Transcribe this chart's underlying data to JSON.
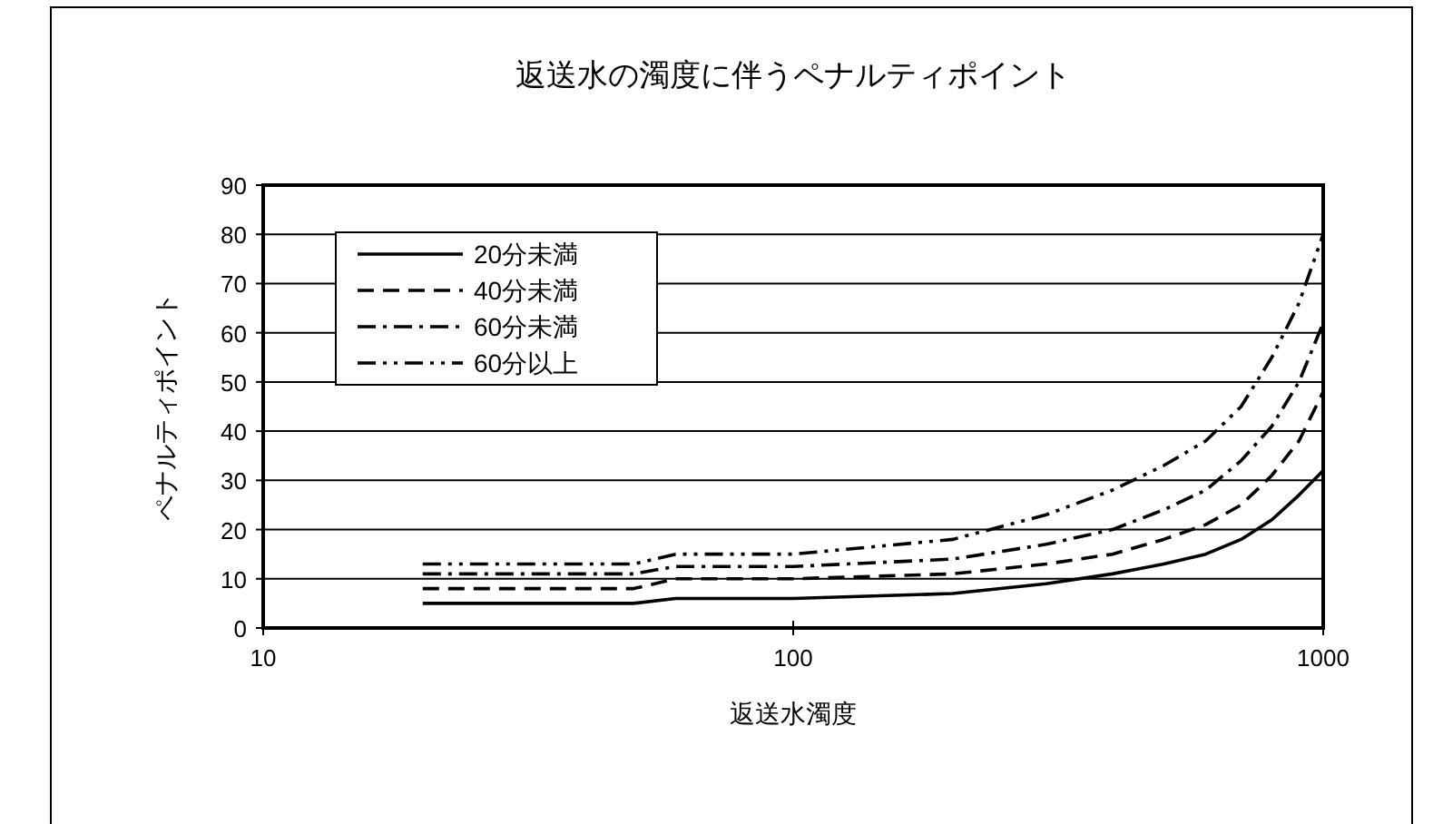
{
  "chart_data": {
    "type": "line",
    "title": "返送水の濁度に伴うペナルティポイント",
    "xlabel": "返送水濁度",
    "ylabel": "ペナルティポイント",
    "log": "x",
    "xlim": [
      10,
      1000
    ],
    "xticks": [
      10,
      100,
      1000
    ],
    "ylim": [
      0,
      90
    ],
    "yticks": [
      0,
      10,
      20,
      30,
      40,
      50,
      60,
      70,
      80,
      90
    ],
    "grid": "y",
    "legend": "top left",
    "marker": "none",
    "x": [
      20,
      50,
      60,
      100,
      200,
      300,
      400,
      500,
      600,
      700,
      800,
      900,
      1000
    ],
    "series": [
      {
        "name": "20分未満",
        "color": "#000000",
        "line_style": "solid",
        "values": [
          5,
          5,
          6,
          6,
          7,
          9,
          11,
          13,
          15,
          18,
          22,
          27,
          32
        ]
      },
      {
        "name": "40分未満",
        "color": "#000000",
        "line_style": "dashed",
        "values": [
          8,
          8,
          10,
          10,
          11,
          13,
          15,
          18,
          21,
          25,
          31,
          38,
          48
        ]
      },
      {
        "name": "60分未満",
        "color": "#000000",
        "line_style": "dashdot",
        "values": [
          11,
          11,
          12.5,
          12.5,
          14,
          17,
          20,
          24,
          28,
          34,
          41,
          50,
          62
        ]
      },
      {
        "name": "60分以上",
        "color": "#000000",
        "line_style": "dashdotdot",
        "values": [
          13,
          13,
          15,
          15,
          18,
          23,
          28,
          33,
          38,
          45,
          55,
          66,
          80
        ]
      }
    ]
  }
}
